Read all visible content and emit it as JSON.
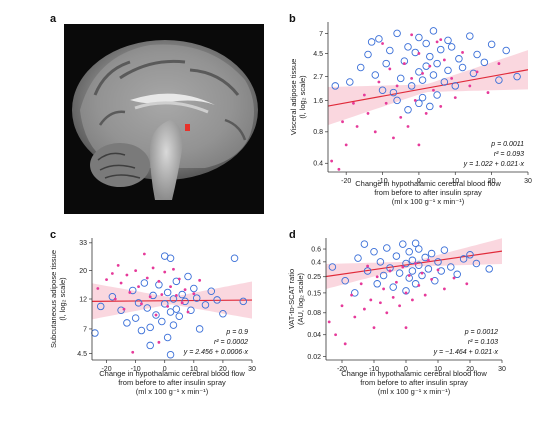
{
  "panel_a": {
    "letter": "a",
    "image": "brain-mri-sagittal-hypothalamus-highlight",
    "highlight_color": "#e8322a"
  },
  "colors": {
    "open_circle": "#3a6fd8",
    "filled_point": "#e63a9a",
    "fit_line": "#e02a3a",
    "ci_band": "#f6b6c4"
  },
  "chart_data": [
    {
      "id": "b",
      "letter": "b",
      "type": "scatter",
      "xlabel": [
        "Change in hypothalamic cerebral blood flow",
        "from before to after insulin spray",
        "(ml x 100 g⁻¹ x min⁻¹)"
      ],
      "ylabel": [
        "Visceral adipose tissue",
        "(l, log₂ scale)"
      ],
      "yscale": "log2",
      "xlim": [
        -25,
        30
      ],
      "ylim": [
        0.33,
        9
      ],
      "xticks": [
        -20,
        -10,
        0,
        10,
        20,
        30
      ],
      "yticks": [
        0.4,
        0.8,
        1.6,
        2.7,
        4.5,
        7
      ],
      "yticklabels": [
        "0.4",
        "0.8",
        "1.6",
        "2.7",
        "4.5",
        "7"
      ],
      "stats": [
        "p = 0.0011",
        "r² = 0.093",
        "y = 1.022 + 0.021·x"
      ],
      "fit": {
        "intercept": 1.022,
        "slope": 0.021,
        "ci_halfwidth_min": 0.12,
        "ci_growth": 0.018,
        "x_center": 2
      },
      "series": [
        {
          "marker": "open-circle",
          "points": [
            [
              -23,
              2.2
            ],
            [
              -19,
              2.4
            ],
            [
              -16,
              3.3
            ],
            [
              -14,
              4.4
            ],
            [
              -13,
              5.8
            ],
            [
              -12,
              2.8
            ],
            [
              -11,
              6.2
            ],
            [
              -10,
              2.0
            ],
            [
              -9,
              3.6
            ],
            [
              -8,
              4.8
            ],
            [
              -7,
              1.9
            ],
            [
              -6,
              7.0
            ],
            [
              -5,
              2.6
            ],
            [
              -4,
              3.8
            ],
            [
              -3,
              5.2
            ],
            [
              -3,
              1.3
            ],
            [
              -2,
              2.2
            ],
            [
              -1,
              4.6
            ],
            [
              0,
              3.0
            ],
            [
              0,
              6.4
            ],
            [
              1,
              1.7
            ],
            [
              1,
              2.5
            ],
            [
              2,
              5.6
            ],
            [
              2,
              3.4
            ],
            [
              3,
              1.4
            ],
            [
              3,
              4.2
            ],
            [
              4,
              7.4
            ],
            [
              4,
              2.8
            ],
            [
              5,
              3.6
            ],
            [
              5,
              1.8
            ],
            [
              6,
              4.9
            ],
            [
              7,
              2.4
            ],
            [
              8,
              6.0
            ],
            [
              8,
              3.1
            ],
            [
              9,
              5.2
            ],
            [
              10,
              2.2
            ],
            [
              11,
              4.0
            ],
            [
              12,
              3.3
            ],
            [
              14,
              6.6
            ],
            [
              15,
              2.9
            ],
            [
              16,
              4.4
            ],
            [
              18,
              3.7
            ],
            [
              20,
              5.5
            ],
            [
              22,
              2.5
            ],
            [
              24,
              4.8
            ],
            [
              27,
              2.7
            ],
            [
              -6,
              1.6
            ],
            [
              0,
              1.5
            ]
          ]
        },
        {
          "marker": "filled-point",
          "points": [
            [
              -24,
              0.42
            ],
            [
              -22,
              0.35
            ],
            [
              -21,
              1.0
            ],
            [
              -20,
              0.6
            ],
            [
              -18,
              1.5
            ],
            [
              -17,
              0.9
            ],
            [
              -15,
              1.8
            ],
            [
              -14,
              1.2
            ],
            [
              -12,
              0.8
            ],
            [
              -11,
              2.4
            ],
            [
              -9,
              1.5
            ],
            [
              -8,
              3.2
            ],
            [
              -7,
              0.7
            ],
            [
              -6,
              2.2
            ],
            [
              -5,
              1.1
            ],
            [
              -4,
              3.6
            ],
            [
              -3,
              0.9
            ],
            [
              -2,
              2.6
            ],
            [
              -1,
              1.6
            ],
            [
              0,
              4.5
            ],
            [
              0,
              0.6
            ],
            [
              1,
              2.9
            ],
            [
              2,
              1.2
            ],
            [
              3,
              3.4
            ],
            [
              4,
              2.0
            ],
            [
              5,
              5.8
            ],
            [
              6,
              1.4
            ],
            [
              7,
              3.9
            ],
            [
              9,
              2.6
            ],
            [
              10,
              1.7
            ],
            [
              12,
              4.6
            ],
            [
              14,
              2.2
            ],
            [
              16,
              3.0
            ],
            [
              19,
              1.9
            ],
            [
              22,
              3.6
            ],
            [
              -10,
              5.6
            ],
            [
              -2,
              6.8
            ],
            [
              6,
              6.1
            ]
          ]
        }
      ]
    },
    {
      "id": "c",
      "letter": "c",
      "type": "scatter",
      "xlabel": [
        "Change in hypothalamic cerebral blood flow",
        "from before to after insulin spray",
        "(ml x 100 g⁻¹ x min⁻¹)"
      ],
      "ylabel": [
        "Subcutaneous adipose tissue",
        "(l, log₂ scale)"
      ],
      "yscale": "log2",
      "xlim": [
        -25,
        30
      ],
      "ylim": [
        4.0,
        36
      ],
      "xticks": [
        -20,
        -10,
        0,
        10,
        20,
        30
      ],
      "yticks": [
        4.5,
        7,
        12,
        20,
        33
      ],
      "yticklabels": [
        "4.5",
        "7",
        "12",
        "20",
        "33"
      ],
      "stats": [
        "p = 0.9",
        "r² = 0.0002",
        "y = 2.456 + 0.0006·x"
      ],
      "fit": {
        "intercept": 3.539,
        "slope": 0.0006,
        "ci_halfwidth_min": 0.09,
        "ci_growth": 0.014,
        "x_center": 2
      },
      "series": [
        {
          "marker": "open-circle",
          "points": [
            [
              -24,
              6.5
            ],
            [
              -22,
              10.5
            ],
            [
              -18,
              12.5
            ],
            [
              -15,
              9.8
            ],
            [
              -13,
              7.8
            ],
            [
              -11,
              14.0
            ],
            [
              -10,
              8.5
            ],
            [
              -9,
              11.2
            ],
            [
              -8,
              6.8
            ],
            [
              -7,
              16.0
            ],
            [
              -6,
              10.2
            ],
            [
              -5,
              7.2
            ],
            [
              -4,
              12.8
            ],
            [
              -3,
              9.0
            ],
            [
              -2,
              15.5
            ],
            [
              -1,
              8.0
            ],
            [
              0,
              11.0
            ],
            [
              0,
              26.0
            ],
            [
              1,
              6.0
            ],
            [
              1,
              13.5
            ],
            [
              2,
              9.5
            ],
            [
              2,
              25.0
            ],
            [
              3,
              12.0
            ],
            [
              3,
              7.5
            ],
            [
              4,
              10.0
            ],
            [
              4,
              16.5
            ],
            [
              5,
              8.8
            ],
            [
              6,
              13.0
            ],
            [
              7,
              11.5
            ],
            [
              8,
              18.0
            ],
            [
              9,
              9.8
            ],
            [
              10,
              14.5
            ],
            [
              11,
              12.2
            ],
            [
              12,
              7.0
            ],
            [
              14,
              10.8
            ],
            [
              16,
              13.8
            ],
            [
              18,
              11.8
            ],
            [
              20,
              9.2
            ],
            [
              24,
              25.0
            ],
            [
              27,
              11.5
            ],
            [
              -5,
              5.2
            ],
            [
              2,
              4.4
            ]
          ]
        },
        {
          "marker": "filled-point",
          "points": [
            [
              -23,
              14.5
            ],
            [
              -20,
              17.0
            ],
            [
              -18,
              19.0
            ],
            [
              -17,
              12.0
            ],
            [
              -16,
              22.0
            ],
            [
              -15,
              16.0
            ],
            [
              -14,
              10.0
            ],
            [
              -13,
              18.5
            ],
            [
              -12,
              13.5
            ],
            [
              -10,
              20.0
            ],
            [
              -9,
              15.0
            ],
            [
              -8,
              11.0
            ],
            [
              -7,
              27.0
            ],
            [
              -6,
              17.5
            ],
            [
              -5,
              12.5
            ],
            [
              -4,
              21.0
            ],
            [
              -3,
              9.0
            ],
            [
              -2,
              16.5
            ],
            [
              -1,
              13.0
            ],
            [
              0,
              19.5
            ],
            [
              1,
              10.5
            ],
            [
              2,
              15.0
            ],
            [
              3,
              20.5
            ],
            [
              4,
              12.8
            ],
            [
              5,
              17.2
            ],
            [
              6,
              11.2
            ],
            [
              7,
              14.2
            ],
            [
              8,
              9.5
            ],
            [
              10,
              13.2
            ],
            [
              12,
              16.8
            ],
            [
              -11,
              4.6
            ],
            [
              -2,
              5.5
            ]
          ]
        }
      ]
    },
    {
      "id": "d",
      "letter": "d",
      "type": "scatter",
      "xlabel": [
        "Change in hypothalamic cerebral blood flow",
        "from before to after insulin spray",
        "(ml x 100 g⁻¹ x min⁻¹)"
      ],
      "ylabel": [
        "VAT-to-SCAT ratio",
        "(AU, log₂ scale)"
      ],
      "yscale": "log2",
      "xlim": [
        -25,
        30
      ],
      "ylim": [
        0.018,
        0.85
      ],
      "xticks": [
        -20,
        -10,
        0,
        10,
        20,
        30
      ],
      "yticks": [
        0.02,
        0.04,
        0.08,
        0.15,
        0.25,
        0.4,
        0.6
      ],
      "yticklabels": [
        "0.02",
        "0.04",
        "0.08",
        "0.15",
        "0.25",
        "0.4",
        "0.6"
      ],
      "stats": [
        "p = 0.0012",
        "r² = 0.103",
        "y = −1.464 + 0.021·x"
      ],
      "fit": {
        "intercept": -1.464,
        "slope": 0.021,
        "ci_halfwidth_min": 0.11,
        "ci_growth": 0.017,
        "x_center": 2
      },
      "series": [
        {
          "marker": "open-circle",
          "points": [
            [
              -23,
              0.34
            ],
            [
              -19,
              0.22
            ],
            [
              -15,
              0.45
            ],
            [
              -13,
              0.7
            ],
            [
              -12,
              0.3
            ],
            [
              -10,
              0.55
            ],
            [
              -9,
              0.2
            ],
            [
              -8,
              0.4
            ],
            [
              -7,
              0.26
            ],
            [
              -6,
              0.62
            ],
            [
              -5,
              0.33
            ],
            [
              -4,
              0.18
            ],
            [
              -3,
              0.48
            ],
            [
              -2,
              0.28
            ],
            [
              -1,
              0.7
            ],
            [
              0,
              0.38
            ],
            [
              0,
              0.16
            ],
            [
              1,
              0.55
            ],
            [
              1,
              0.24
            ],
            [
              2,
              0.42
            ],
            [
              2,
              0.3
            ],
            [
              3,
              0.72
            ],
            [
              3,
              0.2
            ],
            [
              4,
              0.36
            ],
            [
              4,
              0.6
            ],
            [
              5,
              0.26
            ],
            [
              6,
              0.46
            ],
            [
              7,
              0.32
            ],
            [
              8,
              0.52
            ],
            [
              9,
              0.22
            ],
            [
              10,
              0.4
            ],
            [
              11,
              0.3
            ],
            [
              12,
              0.58
            ],
            [
              14,
              0.34
            ],
            [
              16,
              0.27
            ],
            [
              18,
              0.44
            ],
            [
              20,
              0.5
            ],
            [
              22,
              0.38
            ],
            [
              26,
              0.32
            ],
            [
              -16,
              0.15
            ]
          ]
        },
        {
          "marker": "filled-point",
          "points": [
            [
              -24,
              0.06
            ],
            [
              -22,
              0.04
            ],
            [
              -20,
              0.1
            ],
            [
              -19,
              0.03
            ],
            [
              -17,
              0.14
            ],
            [
              -16,
              0.07
            ],
            [
              -14,
              0.2
            ],
            [
              -13,
              0.09
            ],
            [
              -11,
              0.12
            ],
            [
              -10,
              0.05
            ],
            [
              -9,
              0.25
            ],
            [
              -8,
              0.11
            ],
            [
              -7,
              0.17
            ],
            [
              -6,
              0.08
            ],
            [
              -5,
              0.3
            ],
            [
              -4,
              0.13
            ],
            [
              -3,
              0.21
            ],
            [
              -2,
              0.1
            ],
            [
              -1,
              0.34
            ],
            [
              0,
              0.15
            ],
            [
              1,
              0.26
            ],
            [
              2,
              0.12
            ],
            [
              3,
              0.38
            ],
            [
              4,
              0.19
            ],
            [
              5,
              0.28
            ],
            [
              6,
              0.14
            ],
            [
              7,
              0.42
            ],
            [
              8,
              0.23
            ],
            [
              10,
              0.31
            ],
            [
              12,
              0.17
            ],
            [
              15,
              0.24
            ],
            [
              19,
              0.2
            ],
            [
              -12,
              0.35
            ],
            [
              0,
              0.05
            ]
          ]
        }
      ]
    }
  ]
}
